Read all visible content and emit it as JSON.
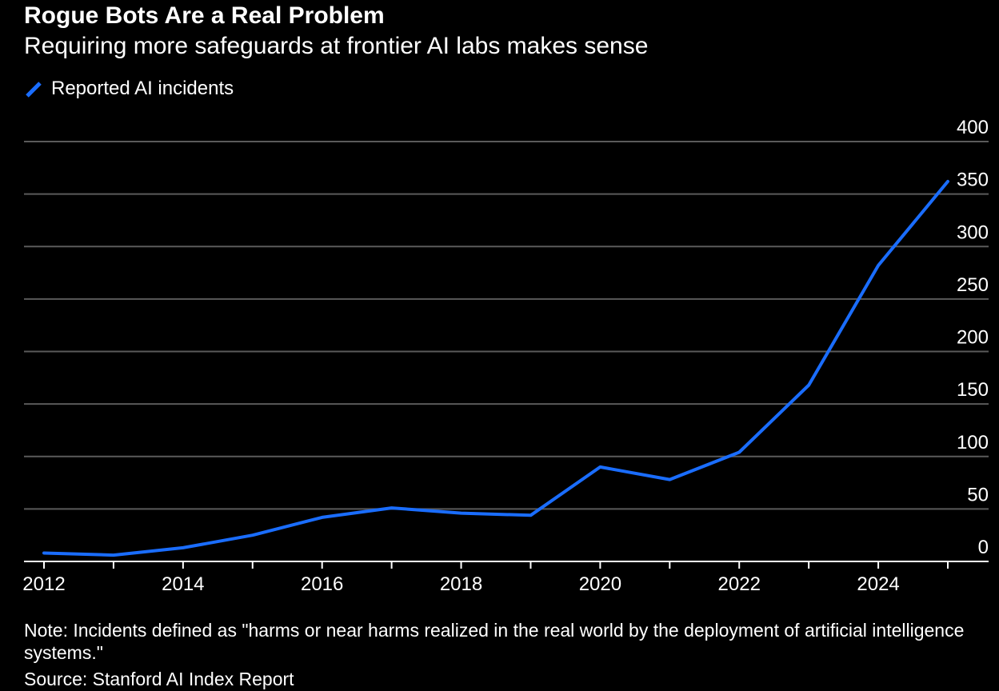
{
  "header": {
    "title": "Rogue Bots Are a Real Problem",
    "subtitle": "Requiring more safeguards at frontier AI labs makes sense"
  },
  "colors": {
    "background": "#000000",
    "line": "#1a6dff",
    "grid": "#5a5a5a",
    "axis": "#ffffff",
    "text": "#ffffff"
  },
  "chart_data": {
    "type": "line",
    "title": "Rogue Bots Are a Real Problem",
    "subtitle": "Requiring more safeguards at frontier AI labs makes sense",
    "xlabel": "",
    "ylabel": "",
    "legend_position": "top-left",
    "grid": true,
    "y_axis_side": "right",
    "ylim": [
      0,
      400
    ],
    "xlim": [
      2012,
      2025
    ],
    "y_ticks": [
      0,
      50,
      100,
      150,
      200,
      250,
      300,
      350,
      400
    ],
    "x_ticks": [
      2012,
      2014,
      2016,
      2018,
      2020,
      2022,
      2024
    ],
    "x_minor_ticks": [
      2013,
      2015,
      2017,
      2019,
      2021,
      2023,
      2025
    ],
    "series": [
      {
        "name": "Reported AI incidents",
        "color": "#1a6dff",
        "x": [
          2012,
          2013,
          2014,
          2015,
          2016,
          2017,
          2018,
          2019,
          2020,
          2021,
          2022,
          2023,
          2024,
          2025
        ],
        "values": [
          8,
          6,
          13,
          25,
          42,
          51,
          46,
          44,
          90,
          78,
          104,
          168,
          282,
          362
        ]
      }
    ]
  },
  "footer": {
    "note": "Note: Incidents defined as \"harms or near harms realized in the real world by the deployment of artificial intelligence systems.\"",
    "source": "Source: Stanford AI Index Report"
  }
}
